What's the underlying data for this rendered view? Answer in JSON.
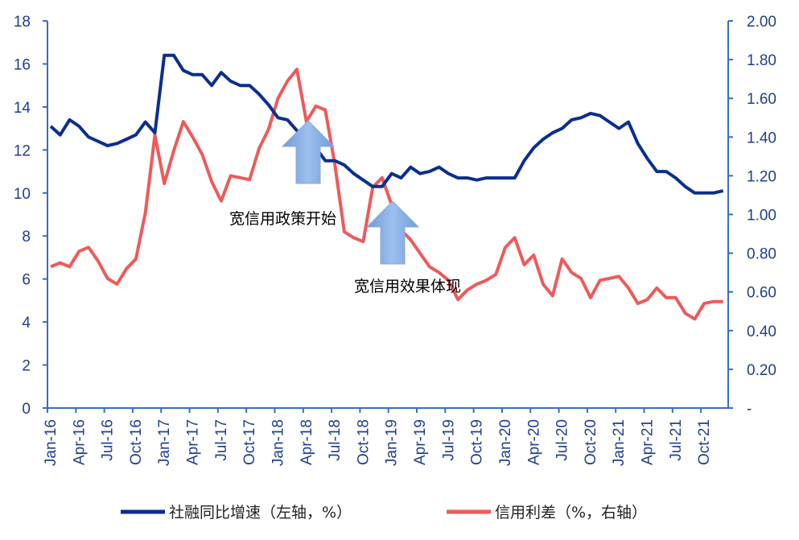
{
  "chart_data": {
    "type": "line",
    "categories": [
      "Jan-16",
      null,
      null,
      "Apr-16",
      null,
      null,
      "Jul-16",
      null,
      null,
      "Oct-16",
      null,
      null,
      "Jan-17",
      null,
      null,
      "Apr-17",
      null,
      null,
      "Jul-17",
      null,
      null,
      "Oct-17",
      null,
      null,
      "Jan-18",
      null,
      null,
      "Apr-18",
      null,
      null,
      "Jul-18",
      null,
      null,
      "Oct-18",
      null,
      null,
      "Jan-19",
      null,
      null,
      "Apr-19",
      null,
      null,
      "Jul-19",
      null,
      null,
      "Oct-19",
      null,
      null,
      "Jan-20",
      null,
      null,
      "Apr-20",
      null,
      null,
      "Jul-20",
      null,
      null,
      "Oct-20",
      null,
      null,
      "Jan-21",
      null,
      null,
      "Apr-21",
      null,
      null,
      "Jul-21",
      null,
      null,
      "Oct-21",
      null,
      null
    ],
    "series": [
      {
        "name": "社融同比增速（左轴，%）",
        "color": "#0b2f8f",
        "axis": "y",
        "values": [
          13.1,
          12.7,
          13.4,
          13.1,
          12.6,
          12.4,
          12.2,
          12.3,
          12.5,
          12.7,
          13.3,
          12.8,
          16.4,
          16.4,
          15.7,
          15.5,
          15.5,
          15.0,
          15.6,
          15.2,
          15.0,
          15.0,
          14.6,
          14.1,
          13.5,
          13.4,
          12.9,
          12.4,
          12.1,
          11.5,
          11.5,
          11.3,
          10.9,
          10.6,
          10.3,
          10.3,
          10.9,
          10.7,
          11.2,
          10.9,
          11.0,
          11.2,
          10.9,
          10.7,
          10.7,
          10.6,
          10.7,
          10.7,
          10.7,
          10.7,
          11.5,
          12.1,
          12.5,
          12.8,
          13.0,
          13.4,
          13.5,
          13.7,
          13.6,
          13.3,
          13.0,
          13.3,
          12.3,
          11.6,
          11.0,
          11.0,
          10.7,
          10.3,
          10.0,
          10.0,
          10.0,
          10.1
        ]
      },
      {
        "name": "信用利差（%，右轴）",
        "color": "#ee5a5a",
        "axis": "y2",
        "values": [
          0.73,
          0.75,
          0.73,
          0.81,
          0.83,
          0.76,
          0.67,
          0.64,
          0.72,
          0.77,
          1.01,
          1.41,
          1.16,
          1.33,
          1.48,
          1.4,
          1.31,
          1.17,
          1.07,
          1.2,
          1.19,
          1.18,
          1.34,
          1.44,
          1.6,
          1.69,
          1.75,
          1.48,
          1.56,
          1.54,
          1.26,
          0.91,
          0.88,
          0.86,
          1.14,
          1.19,
          1.05,
          0.92,
          0.87,
          0.8,
          0.73,
          0.7,
          0.66,
          0.56,
          0.61,
          0.64,
          0.66,
          0.69,
          0.83,
          0.88,
          0.74,
          0.79,
          0.64,
          0.58,
          0.77,
          0.7,
          0.67,
          0.57,
          0.66,
          0.67,
          0.68,
          0.62,
          0.54,
          0.56,
          0.62,
          0.57,
          0.57,
          0.49,
          0.46,
          0.54,
          0.55,
          0.55
        ]
      }
    ],
    "ylim": [
      0,
      18
    ],
    "yticks": [
      0,
      2,
      4,
      6,
      8,
      10,
      12,
      14,
      16,
      18
    ],
    "y2lim": [
      0,
      2
    ],
    "y2ticks": [
      {
        "value": 0,
        "label": "-"
      },
      {
        "value": 0.2,
        "label": "0.20"
      },
      {
        "value": 0.4,
        "label": "0.40"
      },
      {
        "value": 0.6,
        "label": "0.60"
      },
      {
        "value": 0.8,
        "label": "0.80"
      },
      {
        "value": 1,
        "label": "1.00"
      },
      {
        "value": 1.2,
        "label": "1.20"
      },
      {
        "value": 1.4,
        "label": "1.40"
      },
      {
        "value": 1.6,
        "label": "1.60"
      },
      {
        "value": 1.8,
        "label": "1.80"
      },
      {
        "value": 2,
        "label": "2.00"
      }
    ],
    "grid": false,
    "legend": "bottom",
    "axis_color": "#3a6cc0",
    "annotations": [
      "宽信用政策开始",
      "宽信用效果体现"
    ]
  }
}
